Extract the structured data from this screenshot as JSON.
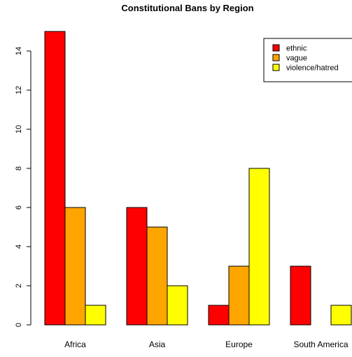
{
  "chart_data": {
    "type": "bar",
    "title": "Constitutional Bans by Region",
    "xlabel": "",
    "ylabel": "",
    "categories": [
      "Africa",
      "Asia",
      "Europe",
      "South America"
    ],
    "series": [
      {
        "name": "ethnic",
        "values": [
          15,
          6,
          1,
          3
        ],
        "color": "#ff0000"
      },
      {
        "name": "vague",
        "values": [
          6,
          5,
          3,
          0
        ],
        "color": "#ffa500"
      },
      {
        "name": "violence/hatred",
        "values": [
          1,
          2,
          8,
          1
        ],
        "color": "#ffff00"
      }
    ],
    "yticks": [
      0,
      2,
      4,
      6,
      8,
      10,
      12,
      14
    ],
    "ylim": [
      0,
      15
    ],
    "grid": false,
    "legend_position": "top-right"
  }
}
